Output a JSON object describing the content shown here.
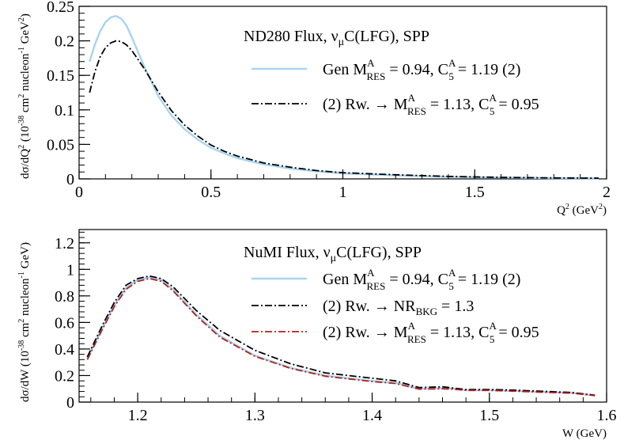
{
  "chart_data": [
    {
      "type": "line",
      "title": "ND280 Flux, νμC(LFG), SPP",
      "title_parts": {
        "lead": "ND280 Flux, ν",
        "sub": "μ",
        "tail": "C(LFG), SPP"
      },
      "xlabel": "Q² (GeV²)",
      "xlabel_parts": {
        "a": "Q",
        "sup1": "2",
        "b": " (GeV",
        "sup2": "2",
        "c": ")"
      },
      "ylabel": "dσ/dQ² (10⁻³⁸ cm² nucleon⁻¹ GeV²)",
      "ylabel_parts": {
        "a": "dσ/dQ",
        "s1": "2",
        "b": " (10",
        "s2": "-38",
        "c": " cm",
        "s3": "2",
        "d": " nucleon",
        "s4": "-1",
        "e": " GeV",
        "s5": "2",
        "f": ")"
      },
      "xlim": [
        0,
        2
      ],
      "ylim": [
        0,
        0.25
      ],
      "xticks": [
        "0",
        "0.5",
        "1",
        "1.5",
        "2"
      ],
      "yticks": [
        "0",
        "0.05",
        "0.1",
        "0.15",
        "0.2",
        "0.25"
      ],
      "grid": false,
      "legend_position": "top-right",
      "series": [
        {
          "name": "Gen M^A_RES = 0.94, C^A_5 = 1.19 (2)",
          "color": "#a8d4f0",
          "dash": "solid",
          "x": [
            0.04,
            0.06,
            0.08,
            0.1,
            0.12,
            0.14,
            0.16,
            0.18,
            0.2,
            0.25,
            0.3,
            0.35,
            0.4,
            0.45,
            0.5,
            0.55,
            0.6,
            0.7,
            0.8,
            0.9,
            1.0,
            1.2,
            1.4,
            1.6,
            1.8,
            1.97
          ],
          "y": [
            0.17,
            0.195,
            0.214,
            0.227,
            0.234,
            0.236,
            0.232,
            0.222,
            0.205,
            0.16,
            0.12,
            0.092,
            0.072,
            0.057,
            0.045,
            0.037,
            0.03,
            0.021,
            0.015,
            0.011,
            0.008,
            0.005,
            0.003,
            0.002,
            0.0012,
            0.0008
          ]
        },
        {
          "name": "(2) Rw. → M^A_RES = 1.13, C^A_5 = 0.95",
          "color": "#000000",
          "dash": "dashdot",
          "x": [
            0.04,
            0.06,
            0.08,
            0.1,
            0.12,
            0.14,
            0.16,
            0.18,
            0.2,
            0.25,
            0.3,
            0.35,
            0.4,
            0.45,
            0.5,
            0.55,
            0.6,
            0.7,
            0.8,
            0.9,
            1.0,
            1.2,
            1.4,
            1.6,
            1.8,
            1.97
          ],
          "y": [
            0.125,
            0.155,
            0.177,
            0.19,
            0.197,
            0.2,
            0.199,
            0.194,
            0.186,
            0.158,
            0.126,
            0.099,
            0.078,
            0.062,
            0.049,
            0.04,
            0.033,
            0.023,
            0.017,
            0.012,
            0.009,
            0.006,
            0.0035,
            0.0022,
            0.0014,
            0.001
          ]
        }
      ],
      "legend_entries": [
        {
          "a": "Gen M",
          "sup": "A",
          "sub": "RES",
          "b": " = 0.94, C",
          "sup2": "A",
          "sub2": "5",
          "c": " = 1.19 (2)"
        },
        {
          "a": "(2) Rw. → M",
          "sup": "A",
          "sub": "RES",
          "b": " = 1.13, C",
          "sup2": "A",
          "sub2": "5",
          "c": " = 0.95"
        }
      ]
    },
    {
      "type": "line",
      "title": "NuMI Flux, νμC(LFG), SPP",
      "title_parts": {
        "lead": "NuMI Flux, ν",
        "sub": "μ",
        "tail": "C(LFG), SPP"
      },
      "xlabel": "W (GeV)",
      "ylabel": "dσ/dW (10⁻³⁸ cm² nucleon⁻¹ GeV)",
      "ylabel_parts": {
        "a": "dσ/dW (10",
        "s2": "-38",
        "c": " cm",
        "s3": "2",
        "d": " nucleon",
        "s4": "-1",
        "e": " GeV)"
      },
      "xlim": [
        1.15,
        1.6
      ],
      "ylim": [
        0,
        1.3
      ],
      "xticks": [
        "1.2",
        "1.3",
        "1.4",
        "1.5",
        "1.6"
      ],
      "yticks": [
        "0",
        "0.2",
        "0.4",
        "0.6",
        "0.8",
        "1",
        "1.2"
      ],
      "grid": false,
      "legend_position": "top-right",
      "series": [
        {
          "name": "Gen M^A_RES = 0.94, C^A_5 = 1.19 (2)",
          "color": "#a8d4f0",
          "dash": "solid",
          "x": [
            1.157,
            1.17,
            1.18,
            1.19,
            1.2,
            1.21,
            1.22,
            1.23,
            1.25,
            1.27,
            1.3,
            1.33,
            1.36,
            1.38,
            1.4,
            1.42,
            1.44,
            1.46,
            1.47,
            1.48,
            1.5,
            1.52,
            1.55,
            1.57,
            1.59
          ],
          "y": [
            0.33,
            0.56,
            0.73,
            0.86,
            0.92,
            0.94,
            0.92,
            0.85,
            0.66,
            0.5,
            0.35,
            0.26,
            0.2,
            0.18,
            0.16,
            0.145,
            0.1,
            0.105,
            0.1,
            0.09,
            0.09,
            0.085,
            0.075,
            0.07,
            0.05
          ]
        },
        {
          "name": "(2) Rw. → NR_BKG = 1.3",
          "color": "#000000",
          "dash": "dashdot",
          "x": [
            1.157,
            1.17,
            1.18,
            1.19,
            1.2,
            1.21,
            1.22,
            1.23,
            1.25,
            1.27,
            1.3,
            1.33,
            1.36,
            1.38,
            1.4,
            1.42,
            1.44,
            1.46,
            1.47,
            1.48,
            1.5,
            1.52,
            1.55,
            1.57,
            1.59
          ],
          "y": [
            0.34,
            0.58,
            0.75,
            0.88,
            0.93,
            0.95,
            0.93,
            0.87,
            0.69,
            0.54,
            0.39,
            0.29,
            0.22,
            0.2,
            0.18,
            0.16,
            0.11,
            0.115,
            0.105,
            0.095,
            0.095,
            0.09,
            0.08,
            0.072,
            0.052
          ]
        },
        {
          "name": "(2) Rw. → M^A_RES = 1.13, C^A_5 = 0.95",
          "color": "#b3201c",
          "dash": "dashdot",
          "x": [
            1.157,
            1.17,
            1.18,
            1.19,
            1.2,
            1.21,
            1.22,
            1.23,
            1.25,
            1.27,
            1.3,
            1.33,
            1.36,
            1.38,
            1.4,
            1.42,
            1.44,
            1.46,
            1.47,
            1.48,
            1.5,
            1.52,
            1.55,
            1.57,
            1.59
          ],
          "y": [
            0.32,
            0.55,
            0.72,
            0.85,
            0.91,
            0.93,
            0.91,
            0.84,
            0.65,
            0.49,
            0.345,
            0.255,
            0.195,
            0.175,
            0.155,
            0.14,
            0.098,
            0.1,
            0.097,
            0.088,
            0.088,
            0.083,
            0.073,
            0.068,
            0.049
          ]
        }
      ],
      "legend_entries": [
        {
          "a": "Gen M",
          "sup": "A",
          "sub": "RES",
          "b": " = 0.94, C",
          "sup2": "A",
          "sub2": "5",
          "c": " = 1.19 (2)"
        },
        {
          "a": "(2) Rw. → NR",
          "sub": "BKG",
          "b": " = 1.3"
        },
        {
          "a": "(2) Rw. → M",
          "sup": "A",
          "sub": "RES",
          "b": " = 1.13, C",
          "sup2": "A",
          "sub2": "5",
          "c": " = 0.95"
        }
      ]
    }
  ]
}
